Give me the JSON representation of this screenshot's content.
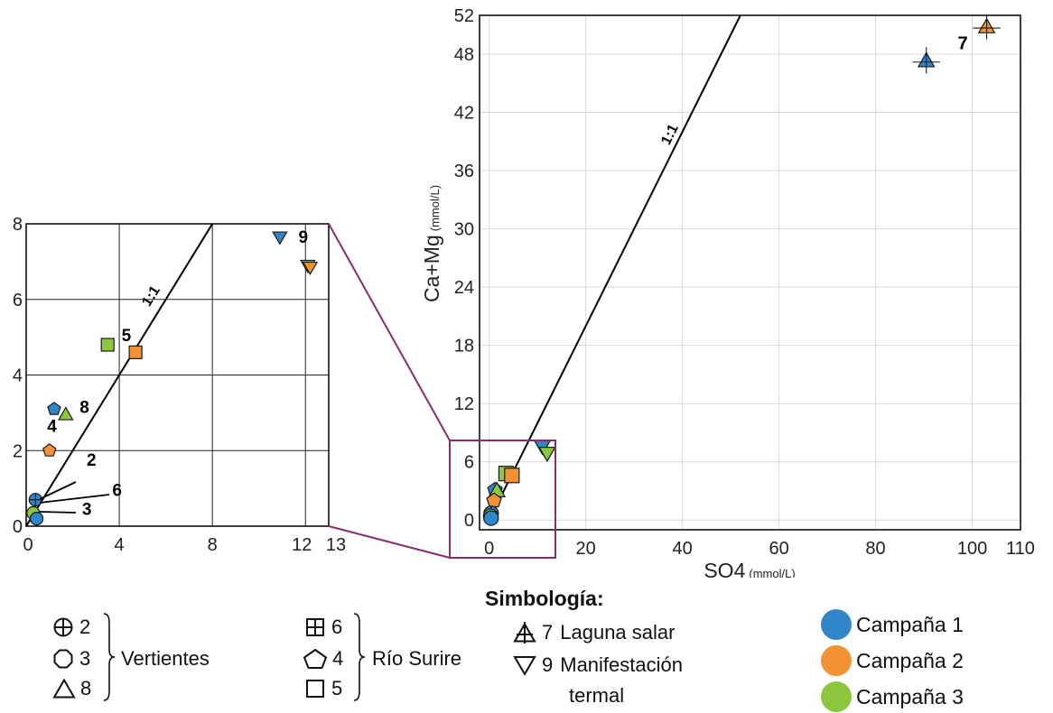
{
  "chart_data": [
    {
      "id": "main",
      "type": "scatter",
      "xlabel": "SO4",
      "xunit": "(mmol/L)",
      "ylabel": "Ca+Mg",
      "yunit": "(mmol/L)",
      "xlim": [
        -2,
        110
      ],
      "ylim": [
        -1,
        52
      ],
      "xticks": [
        "0",
        "20",
        "40",
        "60",
        "80",
        "100",
        "110"
      ],
      "xtick_values": [
        0,
        20,
        40,
        60,
        80,
        100,
        110
      ],
      "yticks": [
        "0",
        "6",
        "12",
        "18",
        "24",
        "30",
        "36",
        "42",
        "48",
        "52"
      ],
      "ytick_values": [
        0,
        6,
        12,
        18,
        24,
        30,
        36,
        42,
        48,
        52
      ],
      "grid": true,
      "reference_line_label": "1:1",
      "annotations": [
        {
          "text": "7",
          "x": 97,
          "y": 48.5
        }
      ],
      "points": [
        {
          "x": 90.5,
          "y": 47.3,
          "shape": "triangle-cross",
          "campaign": 1
        },
        {
          "x": 103,
          "y": 50.8,
          "shape": "triangle-cross",
          "campaign": 2
        },
        {
          "x": 11,
          "y": 7.6,
          "shape": "triangle-down",
          "campaign": 1
        },
        {
          "x": 12,
          "y": 6.9,
          "shape": "triangle-down",
          "campaign": 2
        },
        {
          "x": 12,
          "y": 6.9,
          "shape": "triangle-down",
          "campaign": 3
        },
        {
          "x": 3.5,
          "y": 4.8,
          "shape": "square",
          "campaign": 3
        },
        {
          "x": 4.7,
          "y": 4.6,
          "shape": "square",
          "campaign": 2
        },
        {
          "x": 1.2,
          "y": 3.1,
          "shape": "pentagon",
          "campaign": 1
        },
        {
          "x": 1.6,
          "y": 3.0,
          "shape": "triangle",
          "campaign": 3
        },
        {
          "x": 1,
          "y": 2,
          "shape": "pentagon",
          "campaign": 2
        },
        {
          "x": 0.4,
          "y": 0.7,
          "shape": "circle-cross",
          "campaign": 1
        },
        {
          "x": 0.3,
          "y": 0.4,
          "shape": "circle",
          "campaign": 3
        },
        {
          "x": 0.4,
          "y": 0.2,
          "shape": "circle",
          "campaign": 1
        }
      ]
    },
    {
      "id": "inset",
      "type": "scatter",
      "xlim": [
        0,
        13
      ],
      "ylim": [
        0,
        8
      ],
      "xticks": [
        "0",
        "4",
        "8",
        "12",
        "13"
      ],
      "xtick_values": [
        0,
        4,
        8,
        12,
        13
      ],
      "yticks": [
        "0",
        "2",
        "4",
        "6",
        "8"
      ],
      "ytick_values": [
        0,
        2,
        4,
        6,
        8
      ],
      "grid": true,
      "reference_line_label": "1:1",
      "annotations": [
        {
          "text": "9",
          "x": 11.7,
          "y": 7.5
        },
        {
          "text": "5",
          "x": 4.1,
          "y": 4.9
        },
        {
          "text": "8",
          "x": 2.3,
          "y": 3.0
        },
        {
          "text": "4",
          "x": 0.9,
          "y": 2.5
        },
        {
          "text": "2",
          "x": 2.6,
          "y": 1.6
        },
        {
          "text": "6",
          "x": 3.7,
          "y": 0.8
        },
        {
          "text": "3",
          "x": 2.4,
          "y": 0.3
        }
      ],
      "points": [
        {
          "x": 10.9,
          "y": 7.65,
          "shape": "triangle-down",
          "campaign": 1
        },
        {
          "x": 12.1,
          "y": 6.9,
          "shape": "triangle-down",
          "campaign": 3
        },
        {
          "x": 12.2,
          "y": 6.85,
          "shape": "triangle-down",
          "campaign": 2
        },
        {
          "x": 3.5,
          "y": 4.8,
          "shape": "square",
          "campaign": 3
        },
        {
          "x": 4.7,
          "y": 4.6,
          "shape": "square",
          "campaign": 2
        },
        {
          "x": 1.2,
          "y": 3.1,
          "shape": "pentagon",
          "campaign": 1
        },
        {
          "x": 1.7,
          "y": 2.95,
          "shape": "triangle",
          "campaign": 3
        },
        {
          "x": 1.0,
          "y": 2.0,
          "shape": "pentagon",
          "campaign": 2
        },
        {
          "x": 0.4,
          "y": 0.7,
          "shape": "circle-cross",
          "campaign": 1
        },
        {
          "x": 0.3,
          "y": 0.35,
          "shape": "circle",
          "campaign": 3
        },
        {
          "x": 0.45,
          "y": 0.2,
          "shape": "circle",
          "campaign": 1
        }
      ]
    }
  ],
  "colors": {
    "campaign_1": "#2f86c8",
    "campaign_2": "#f39235",
    "campaign_3": "#8dc63f",
    "zoom": "#8b2c6e",
    "grid": "#d9d9d9"
  },
  "legend": {
    "title": "Simbología:",
    "groups": [
      {
        "label": "Vertientes",
        "items": [
          {
            "shape": "circle-cross",
            "num": "2"
          },
          {
            "shape": "octagon",
            "num": "3"
          },
          {
            "shape": "triangle",
            "num": "8"
          }
        ]
      },
      {
        "label": "Río Surire",
        "items": [
          {
            "shape": "square-cross",
            "num": "6"
          },
          {
            "shape": "pentagon",
            "num": "4"
          },
          {
            "shape": "square",
            "num": "5"
          }
        ]
      }
    ],
    "special": [
      {
        "shape": "triangle-cross",
        "num": "7",
        "label": "Laguna salar"
      },
      {
        "shape": "triangle-down",
        "num": "9",
        "label": "Manifestación",
        "label2": "termal"
      }
    ],
    "campaigns": [
      {
        "label": "Campaña 1",
        "color": "#2f86c8"
      },
      {
        "label": "Campaña 2",
        "color": "#f39235"
      },
      {
        "label": "Campaña 3",
        "color": "#8dc63f"
      }
    ]
  }
}
